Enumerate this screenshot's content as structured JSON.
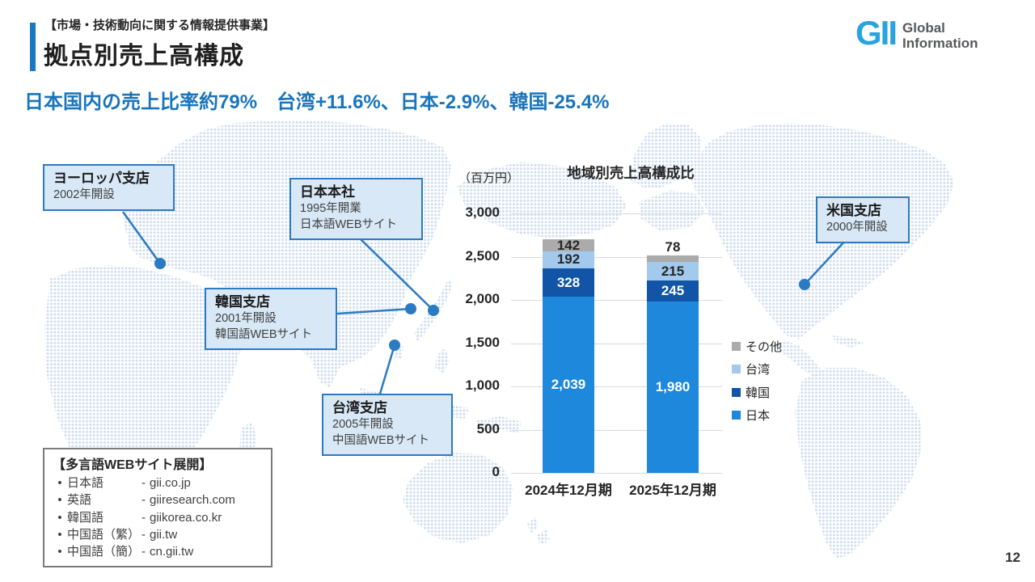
{
  "header": {
    "eyebrow": "【市場・技術動向に関する情報提供事業】",
    "title": "拠点別売上高構成",
    "subtitle": "日本国内の売上比率約79%　台湾+11.6%、日本-2.9%、韓国-25.4%"
  },
  "logo": {
    "mark": "GII",
    "line1": "Global",
    "line2": "Information"
  },
  "callouts": {
    "europe": {
      "title": "ヨーロッパ支店",
      "line1": "2002年開設"
    },
    "japan_hq": {
      "title": "日本本社",
      "line1": "1995年開業",
      "line2": "日本語WEBサイト"
    },
    "korea": {
      "title": "韓国支店",
      "line1": "2001年開設",
      "line2": "韓国語WEBサイト"
    },
    "taiwan": {
      "title": "台湾支店",
      "line1": "2005年開設",
      "line2": "中国語WEBサイト"
    },
    "usa": {
      "title": "米国支店",
      "line1": "2000年開設"
    }
  },
  "web_box": {
    "title": "【多言語WEBサイト展開】",
    "bullet": "•",
    "separator": "-",
    "items": [
      {
        "lang": "日本語",
        "url": "gii.co.jp"
      },
      {
        "lang": "英語",
        "url": "giiresearch.com"
      },
      {
        "lang": "韓国語",
        "url": "giikorea.co.kr"
      },
      {
        "lang": "中国語（繁）",
        "url": "gii.tw"
      },
      {
        "lang": "中国語（簡）",
        "url": "cn.gii.tw"
      }
    ]
  },
  "chart_data": {
    "type": "bar",
    "stacked": true,
    "title": "地域別売上高構成比",
    "unit_label": "（百万円）",
    "categories": [
      "2024年12月期",
      "2025年12月期"
    ],
    "series": [
      {
        "name": "日本",
        "color": "#1e88dd",
        "label_color": "#ffffff",
        "values": [
          2039,
          1980
        ]
      },
      {
        "name": "韓国",
        "color": "#1254a5",
        "label_color": "#ffffff",
        "values": [
          328,
          245
        ]
      },
      {
        "name": "台湾",
        "color": "#a3c9ed",
        "label_color": "#262626",
        "values": [
          192,
          215
        ]
      },
      {
        "name": "その他",
        "color": "#ababab",
        "label_color": "#262626",
        "values": [
          142,
          78
        ]
      }
    ],
    "legend_order": [
      "その他",
      "台湾",
      "韓国",
      "日本"
    ],
    "ylim": [
      0,
      3000
    ],
    "ytick_step": 500,
    "grid": true,
    "legend_position": "right"
  },
  "colors": {
    "accent_blue": "#1878c1",
    "subtitle_blue": "#1a74ba",
    "logo_blue": "#29a3df",
    "map_dot": "#ccdaec",
    "connector_blue": "#2b7bc3",
    "callout_fill": "#d8e8f6"
  },
  "page_number": "12"
}
